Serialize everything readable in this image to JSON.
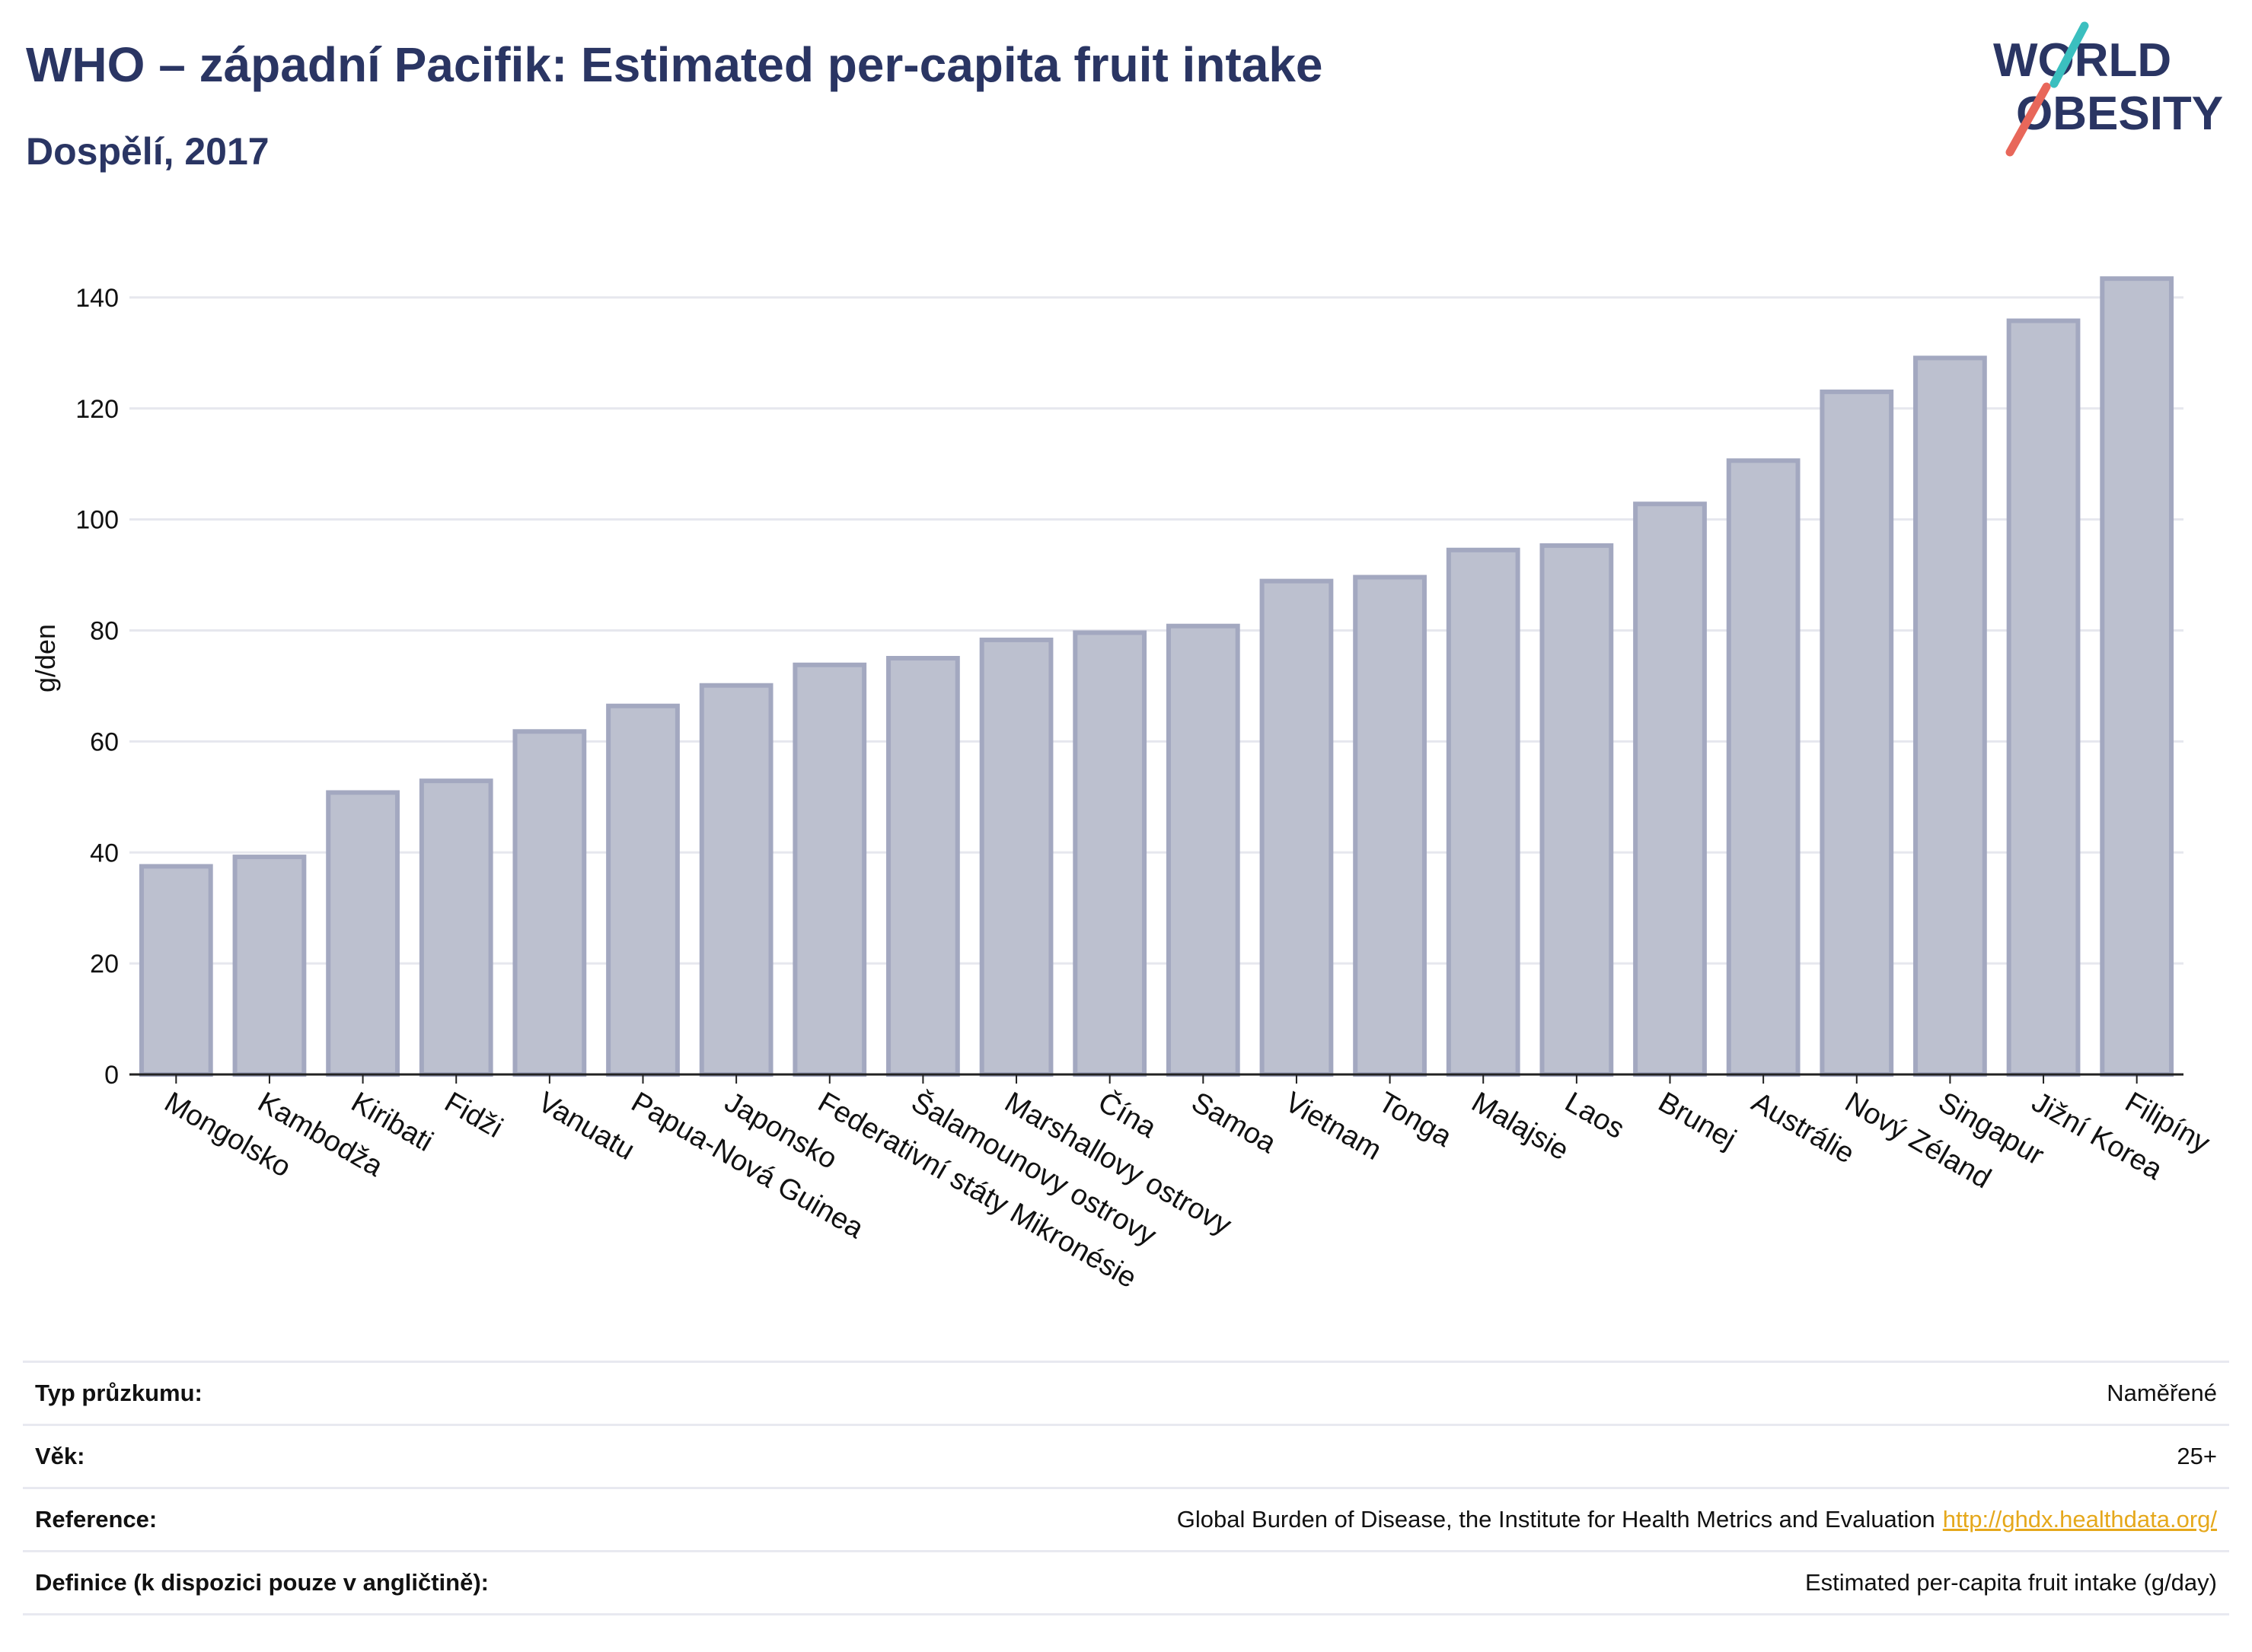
{
  "header": {
    "title": "WHO – západní Pacifik: Estimated per-capita fruit intake",
    "subtitle": "Dospělí, 2017"
  },
  "logo": {
    "line1": "WORLD",
    "line2": "OBESITY",
    "colors": {
      "text": "#2a3563",
      "teal": "#3bbfbf",
      "coral": "#e8675a"
    }
  },
  "colors": {
    "bar_fill": "#bcc0cf",
    "bar_stroke": "#a3a8c0",
    "grid": "#e6e7ee",
    "axis": "#222222",
    "heading": "#2a3563",
    "link": "#e5a81c"
  },
  "chart_data": {
    "type": "bar",
    "title": "WHO – západní Pacifik: Estimated per-capita fruit intake",
    "subtitle": "Dospělí, 2017",
    "xlabel": "",
    "ylabel": "g/den",
    "ylim": [
      0,
      150
    ],
    "yticks": [
      0,
      20,
      40,
      60,
      80,
      100,
      120,
      140
    ],
    "grid": true,
    "categories": [
      "Mongolsko",
      "Kambodža",
      "Kiribati",
      "Fidži",
      "Vanuatu",
      "Papua-Nová Guinea",
      "Japonsko",
      "Federativní státy Mikronésie",
      "Šalamounovy ostrovy",
      "Marshallovy ostrovy",
      "Čína",
      "Samoa",
      "Vietnam",
      "Tonga",
      "Malajsie",
      "Laos",
      "Brunej",
      "Austrálie",
      "Nový Zéland",
      "Singapur",
      "Jižní Korea",
      "Filipíny"
    ],
    "values": [
      37.5,
      39.2,
      50.8,
      52.9,
      61.8,
      66.4,
      70.1,
      73.8,
      75.0,
      78.3,
      79.6,
      80.8,
      88.9,
      89.6,
      94.5,
      95.3,
      102.8,
      110.6,
      123.0,
      129.1,
      135.8,
      143.4
    ]
  },
  "meta": {
    "rows": [
      {
        "label": "Typ průzkumu:",
        "value": "Naměřené"
      },
      {
        "label": "Věk:",
        "value": "25+"
      },
      {
        "label": "Reference:",
        "value": "Global Burden of Disease, the Institute for Health Metrics and Evaluation",
        "link": "http://ghdx.healthdata.org/"
      },
      {
        "label": "Definice (k dispozici pouze v angličtině):",
        "value": "Estimated per-capita fruit intake (g/day)"
      }
    ]
  }
}
